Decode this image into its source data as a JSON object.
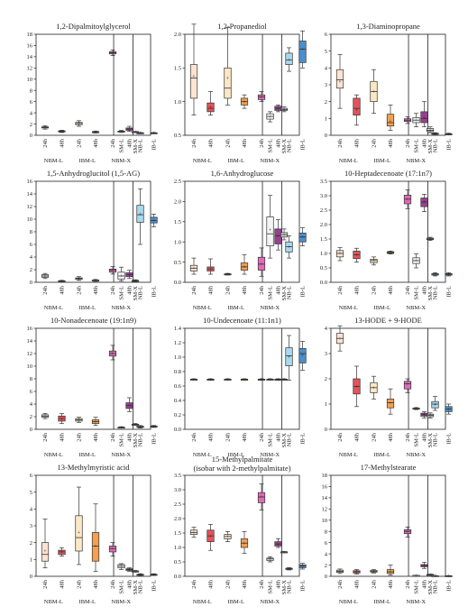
{
  "groups": [
    "NBM-L",
    "IBM-L",
    "NBM-X"
  ],
  "time_labels": [
    "24h",
    "48h"
  ],
  "single_labels": [
    "SM-L",
    "SM-X",
    "NB-L",
    "IB-L"
  ],
  "box_colors": [
    "#fde3d3",
    "#e8525a",
    "#fde8c6",
    "#f2a053",
    "#e06cb6",
    "#9b3f93",
    "#f4f4f4",
    "#dcdcdc",
    "#a9d8ef",
    "#4a8fce"
  ],
  "chart_data": [
    {
      "type": "box",
      "title": "1,2-Dipalmitoylglycerol",
      "ylim": [
        0,
        18
      ],
      "yticks": [
        0,
        2,
        4,
        6,
        8,
        10,
        12,
        14,
        16,
        18
      ],
      "categories": [
        "NBM-L 24h",
        "NBM-L 48h",
        "IBM-L 24h",
        "IBM-L 48h",
        "NBM-X 24h",
        "NBM-X 48h",
        "SM-L",
        "SM-X",
        "NB-L",
        "IB-L"
      ],
      "boxes": [
        [
          1.1,
          1.3,
          1.4,
          1.5,
          1.7,
          1.45
        ],
        [
          0.5,
          0.6,
          0.7,
          0.8,
          0.9,
          0.7
        ],
        [
          1.6,
          1.9,
          2.1,
          2.3,
          2.6,
          2.1
        ],
        [
          0.4,
          0.5,
          0.6,
          0.65,
          0.75,
          0.6
        ],
        [
          14.2,
          14.5,
          14.7,
          14.9,
          15.2,
          14.7
        ],
        [
          0.7,
          0.9,
          1.1,
          1.3,
          1.6,
          1.1
        ],
        [
          0.5,
          0.6,
          0.7,
          0.75,
          0.85,
          0.7
        ],
        [
          0.5,
          0.55,
          0.6,
          0.65,
          0.7,
          0.6
        ],
        [
          0.3,
          0.35,
          0.4,
          0.45,
          0.5,
          0.4
        ],
        [
          0.3,
          0.35,
          0.4,
          0.45,
          0.5,
          0.4
        ]
      ]
    },
    {
      "type": "box",
      "title": "1,2-Propanediol",
      "ylim": [
        0.5,
        2.0
      ],
      "yticks": [
        0.5,
        1.0,
        1.5,
        2.0
      ],
      "categories": [
        "NBM-L 24h",
        "NBM-L 48h",
        "IBM-L 24h",
        "IBM-L 48h",
        "NBM-X 24h",
        "NBM-X 48h",
        "SM-L",
        "SM-X",
        "NB-L",
        "IB-L"
      ],
      "boxes": [
        [
          0.8,
          1.05,
          1.35,
          1.55,
          2.15,
          1.38
        ],
        [
          0.8,
          0.85,
          0.9,
          0.98,
          1.15,
          0.92
        ],
        [
          0.95,
          1.05,
          1.2,
          1.5,
          2.1,
          1.35
        ],
        [
          0.9,
          0.95,
          1.0,
          1.05,
          1.1,
          1.0
        ],
        [
          1.0,
          1.03,
          1.07,
          1.1,
          1.15,
          1.07
        ],
        [
          0.85,
          0.87,
          0.9,
          0.93,
          0.95,
          0.9
        ],
        [
          0.7,
          0.74,
          0.78,
          0.82,
          0.85,
          0.78
        ],
        [
          0.85,
          0.87,
          0.88,
          0.9,
          0.92,
          0.88
        ],
        [
          1.45,
          1.55,
          1.62,
          1.72,
          1.8,
          1.62
        ],
        [
          1.5,
          1.58,
          1.78,
          1.9,
          2.05,
          1.78
        ]
      ]
    },
    {
      "type": "box",
      "title": "1,3-Diaminopropane",
      "ylim": [
        0,
        6
      ],
      "yticks": [
        0,
        1,
        2,
        3,
        4,
        5,
        6
      ],
      "categories": [
        "NBM-L 24h",
        "NBM-L 48h",
        "IBM-L 24h",
        "IBM-L 48h",
        "NBM-X 24h",
        "NBM-X 48h",
        "SM-L",
        "SM-X",
        "NB-L",
        "IB-L"
      ],
      "boxes": [
        [
          1.6,
          2.8,
          3.3,
          3.9,
          4.8,
          3.2
        ],
        [
          0.6,
          1.2,
          1.6,
          2.2,
          2.4,
          1.5
        ],
        [
          1.3,
          2.0,
          2.6,
          3.2,
          3.9,
          2.6
        ],
        [
          0.3,
          0.55,
          0.75,
          1.25,
          1.8,
          0.85
        ],
        [
          0.7,
          0.82,
          0.9,
          0.98,
          1.1,
          0.9
        ],
        [
          0.5,
          0.75,
          1.0,
          1.4,
          2.0,
          1.05
        ],
        [
          0.5,
          0.75,
          0.9,
          1.05,
          1.3,
          0.9
        ],
        [
          0.15,
          0.22,
          0.3,
          0.4,
          0.5,
          0.3
        ],
        [
          0.05,
          0.08,
          0.1,
          0.12,
          0.15,
          0.1
        ],
        [
          0.03,
          0.05,
          0.07,
          0.09,
          0.12,
          0.07
        ]
      ]
    },
    {
      "type": "box",
      "title": "1,5-Anhydroglucitol (1,5-AG)",
      "ylim": [
        0,
        16
      ],
      "yticks": [
        0,
        2,
        4,
        6,
        8,
        10,
        12,
        14,
        16
      ],
      "categories": [
        "NBM-L 24h",
        "NBM-L 48h",
        "IBM-L 24h",
        "IBM-L 48h",
        "NBM-X 24h",
        "NBM-X 48h",
        "SM-L",
        "SM-X",
        "NB-L",
        "IB-L"
      ],
      "boxes": [
        [
          0.6,
          0.8,
          1.0,
          1.2,
          1.4,
          1.0
        ],
        [
          0.1,
          0.15,
          0.2,
          0.25,
          0.3,
          0.2
        ],
        [
          0.3,
          0.45,
          0.6,
          0.7,
          0.9,
          0.6
        ],
        [
          0.15,
          0.2,
          0.3,
          0.35,
          0.45,
          0.3
        ],
        [
          1.3,
          1.6,
          1.9,
          2.1,
          2.5,
          1.9
        ],
        [
          0.6,
          0.9,
          1.2,
          1.5,
          1.9,
          1.2
        ],
        [
          0.2,
          0.5,
          1.0,
          1.6,
          2.4,
          1.0
        ],
        [
          0.1,
          0.15,
          0.2,
          0.3,
          0.4,
          0.2
        ],
        [
          6.0,
          9.5,
          10.7,
          12.2,
          14.8,
          10.8
        ],
        [
          8.8,
          9.4,
          9.8,
          10.3,
          10.8,
          9.8
        ]
      ]
    },
    {
      "type": "box",
      "title": "1,6-Anhydroglucose",
      "ylim": [
        0,
        2.5
      ],
      "yticks": [
        0,
        0.5,
        1.0,
        1.5,
        2.0,
        2.5
      ],
      "categories": [
        "NBM-L 24h",
        "NBM-L 48h",
        "IBM-L 24h",
        "IBM-L 48h",
        "NBM-X 24h",
        "NBM-X 48h",
        "SM-L",
        "SM-X",
        "NB-L",
        "IB-L"
      ],
      "boxes": [
        [
          0.2,
          0.28,
          0.35,
          0.42,
          0.6,
          0.35
        ],
        [
          0.2,
          0.28,
          0.33,
          0.38,
          0.58,
          0.33
        ],
        [
          0.18,
          0.19,
          0.2,
          0.21,
          0.22,
          0.2
        ],
        [
          0.2,
          0.3,
          0.38,
          0.48,
          0.68,
          0.4
        ],
        [
          0.15,
          0.3,
          0.45,
          0.62,
          0.85,
          0.45
        ],
        [
          0.8,
          0.95,
          1.15,
          1.32,
          1.55,
          1.15
        ],
        [
          0.6,
          0.9,
          1.2,
          1.62,
          2.15,
          1.3
        ],
        [
          1.05,
          1.12,
          1.18,
          1.23,
          1.32,
          1.18
        ],
        [
          0.6,
          0.75,
          0.88,
          1.0,
          1.15,
          0.88
        ],
        [
          0.9,
          1.0,
          1.12,
          1.22,
          1.35,
          1.12
        ]
      ]
    },
    {
      "type": "box",
      "title": "10-Heptadecenoate (17:1n7)",
      "ylim": [
        0,
        3.5
      ],
      "yticks": [
        0,
        0.5,
        1.0,
        1.5,
        2.0,
        2.5,
        3.0,
        3.5
      ],
      "categories": [
        "NBM-L 24h",
        "NBM-L 48h",
        "IBM-L 24h",
        "IBM-L 48h",
        "NBM-X 24h",
        "NBM-X 48h",
        "SM-L",
        "SM-X",
        "NB-L",
        "IB-L"
      ],
      "boxes": [
        [
          0.75,
          0.88,
          1.0,
          1.1,
          1.2,
          1.0
        ],
        [
          0.7,
          0.82,
          0.95,
          1.08,
          1.18,
          0.95
        ],
        [
          0.6,
          0.68,
          0.75,
          0.8,
          0.88,
          0.75
        ],
        [
          0.98,
          1.0,
          1.03,
          1.06,
          1.08,
          1.03
        ],
        [
          2.55,
          2.72,
          2.88,
          3.02,
          3.2,
          2.88
        ],
        [
          2.45,
          2.62,
          2.78,
          2.92,
          3.05,
          2.78
        ],
        [
          0.5,
          0.65,
          0.75,
          0.85,
          0.98,
          0.75
        ],
        [
          1.45,
          1.48,
          1.5,
          1.53,
          1.56,
          1.5
        ],
        [
          0.22,
          0.25,
          0.28,
          0.3,
          0.33,
          0.28
        ],
        [
          0.22,
          0.25,
          0.28,
          0.3,
          0.33,
          0.28
        ]
      ]
    },
    {
      "type": "box",
      "title": "10-Nonadecenoate (19:1n9)",
      "ylim": [
        0,
        16
      ],
      "yticks": [
        0,
        2,
        4,
        6,
        8,
        10,
        12,
        14,
        16
      ],
      "categories": [
        "NBM-L 24h",
        "NBM-L 48h",
        "IBM-L 24h",
        "IBM-L 48h",
        "NBM-X 24h",
        "NBM-X 48h",
        "SM-L",
        "SM-X",
        "NB-L",
        "IB-L"
      ],
      "boxes": [
        [
          1.7,
          1.9,
          2.1,
          2.3,
          2.5,
          2.1
        ],
        [
          0.9,
          1.3,
          1.7,
          2.1,
          2.5,
          1.7
        ],
        [
          1.1,
          1.3,
          1.5,
          1.7,
          1.9,
          1.5
        ],
        [
          0.6,
          0.9,
          1.2,
          1.5,
          1.9,
          1.2
        ],
        [
          11.0,
          11.6,
          12.0,
          12.4,
          13.3,
          12.0
        ],
        [
          2.8,
          3.3,
          3.8,
          4.2,
          5.0,
          3.8
        ],
        [
          0.2,
          0.25,
          0.3,
          0.35,
          0.4,
          0.3
        ],
        [
          0.6,
          0.7,
          0.75,
          0.8,
          0.9,
          0.75
        ],
        [
          0.2,
          0.3,
          0.4,
          0.5,
          0.6,
          0.4
        ],
        [
          0.3,
          0.38,
          0.45,
          0.52,
          0.6,
          0.45
        ]
      ]
    },
    {
      "type": "box",
      "title": "10-Undecenoate (11:1n1)",
      "ylim": [
        0,
        1.4
      ],
      "yticks": [
        0,
        0.2,
        0.4,
        0.6,
        0.8,
        1.0,
        1.2,
        1.4
      ],
      "categories": [
        "NBM-L 24h",
        "NBM-L 48h",
        "IBM-L 24h",
        "IBM-L 48h",
        "NBM-X 24h",
        "NBM-X 48h",
        "SM-L",
        "SM-X",
        "NB-L",
        "IB-L"
      ],
      "boxes": [
        [
          0.68,
          0.685,
          0.69,
          0.695,
          0.7,
          0.69
        ],
        [
          0.68,
          0.685,
          0.69,
          0.695,
          0.7,
          0.69
        ],
        [
          0.68,
          0.685,
          0.69,
          0.695,
          0.7,
          0.69
        ],
        [
          0.68,
          0.685,
          0.69,
          0.695,
          0.7,
          0.69
        ],
        [
          0.68,
          0.685,
          0.69,
          0.695,
          0.7,
          0.69
        ],
        [
          0.68,
          0.685,
          0.69,
          0.695,
          0.7,
          0.69
        ],
        [
          0.68,
          0.685,
          0.69,
          0.695,
          0.7,
          0.69
        ],
        [
          0.68,
          0.685,
          0.69,
          0.695,
          0.7,
          0.69
        ],
        [
          0.68,
          0.88,
          1.02,
          1.13,
          1.3,
          1.0
        ],
        [
          0.82,
          0.92,
          1.05,
          1.12,
          1.22,
          1.03
        ]
      ]
    },
    {
      "type": "box",
      "title": "13-HODE + 9-HODE",
      "ylim": [
        0,
        4
      ],
      "yticks": [
        0,
        1,
        2,
        3,
        4
      ],
      "categories": [
        "NBM-L 24h",
        "NBM-L 48h",
        "IBM-L 24h",
        "IBM-L 48h",
        "NBM-X 24h",
        "NBM-X 48h",
        "SM-L",
        "SM-X",
        "NB-L",
        "IB-L"
      ],
      "boxes": [
        [
          3.1,
          3.4,
          3.6,
          3.8,
          4.1,
          3.6
        ],
        [
          0.9,
          1.4,
          1.7,
          2.0,
          2.5,
          1.7
        ],
        [
          1.2,
          1.45,
          1.65,
          1.85,
          2.1,
          1.65
        ],
        [
          0.6,
          0.85,
          1.05,
          1.2,
          1.6,
          1.05
        ],
        [
          1.45,
          1.6,
          1.8,
          1.9,
          2.0,
          1.8
        ],
        [
          0.45,
          0.52,
          0.58,
          0.64,
          0.7,
          0.58
        ],
        [
          0.78,
          0.8,
          0.82,
          0.84,
          0.86,
          0.82
        ],
        [
          0.45,
          0.5,
          0.55,
          0.6,
          0.65,
          0.55
        ],
        [
          0.75,
          0.85,
          1.0,
          1.1,
          1.3,
          0.98
        ],
        [
          0.6,
          0.7,
          0.8,
          0.9,
          1.0,
          0.8
        ]
      ]
    },
    {
      "type": "box",
      "title": "13-Methylmyristic acid",
      "ylim": [
        0,
        6
      ],
      "yticks": [
        0,
        1,
        2,
        3,
        4,
        5,
        6
      ],
      "categories": [
        "NBM-L 24h",
        "NBM-L 48h",
        "IBM-L 24h",
        "IBM-L 48h",
        "NBM-X 24h",
        "NBM-X 48h",
        "SM-L",
        "SM-X",
        "NB-L",
        "IB-L"
      ],
      "boxes": [
        [
          0.5,
          0.9,
          1.3,
          2.0,
          3.4,
          1.5
        ],
        [
          1.2,
          1.3,
          1.45,
          1.55,
          1.7,
          1.45
        ],
        [
          0.7,
          1.5,
          2.3,
          3.6,
          5.3,
          2.6
        ],
        [
          0.3,
          0.9,
          1.8,
          2.6,
          4.3,
          1.8
        ],
        [
          1.2,
          1.45,
          1.65,
          1.8,
          2.0,
          1.65
        ],
        [
          0.3,
          0.35,
          0.4,
          0.45,
          0.5,
          0.4
        ],
        [
          0.4,
          0.5,
          0.6,
          0.7,
          0.75,
          0.6
        ],
        [
          0.25,
          0.28,
          0.3,
          0.32,
          0.35,
          0.3
        ],
        [
          0.05,
          0.08,
          0.1,
          0.12,
          0.15,
          0.1
        ],
        [
          0.05,
          0.08,
          0.1,
          0.12,
          0.15,
          0.1
        ]
      ]
    },
    {
      "type": "box",
      "title": "15-Methylpalmitate",
      "subtitle": "(isobar with 2-methylpalmitate)",
      "ylim": [
        0,
        3.5
      ],
      "yticks": [
        0,
        0.5,
        1.0,
        1.5,
        2.0,
        2.5,
        3.0,
        3.5
      ],
      "categories": [
        "NBM-L 24h",
        "NBM-L 48h",
        "IBM-L 24h",
        "IBM-L 48h",
        "NBM-X 24h",
        "NBM-X 48h",
        "SM-L",
        "SM-X",
        "NB-L",
        "IB-L"
      ],
      "boxes": [
        [
          1.35,
          1.45,
          1.52,
          1.6,
          1.7,
          1.52
        ],
        [
          0.9,
          1.2,
          1.4,
          1.6,
          1.8,
          1.4
        ],
        [
          1.2,
          1.3,
          1.38,
          1.45,
          1.55,
          1.38
        ],
        [
          0.8,
          1.0,
          1.15,
          1.3,
          1.55,
          1.15
        ],
        [
          2.3,
          2.55,
          2.75,
          2.9,
          3.2,
          2.75
        ],
        [
          1.0,
          1.05,
          1.12,
          1.2,
          1.3,
          1.12
        ],
        [
          0.5,
          0.55,
          0.6,
          0.63,
          0.68,
          0.6
        ],
        [
          0.82,
          0.83,
          0.84,
          0.85,
          0.86,
          0.84
        ],
        [
          0.22,
          0.24,
          0.26,
          0.28,
          0.3,
          0.26
        ],
        [
          0.25,
          0.3,
          0.35,
          0.4,
          0.45,
          0.35
        ]
      ]
    },
    {
      "type": "box",
      "title": "17-Methylstearate",
      "ylim": [
        0,
        18
      ],
      "yticks": [
        0,
        2,
        4,
        6,
        8,
        10,
        12,
        14,
        16,
        18
      ],
      "categories": [
        "NBM-L 24h",
        "NBM-L 48h",
        "IBM-L 24h",
        "IBM-L 48h",
        "NBM-X 24h",
        "NBM-X 48h",
        "SM-L",
        "SM-X",
        "NB-L",
        "IB-L"
      ],
      "boxes": [
        [
          0.5,
          0.7,
          0.9,
          1.1,
          1.3,
          0.9
        ],
        [
          0.4,
          0.6,
          0.8,
          1.0,
          1.2,
          0.8
        ],
        [
          0.6,
          0.75,
          0.9,
          1.05,
          1.2,
          0.9
        ],
        [
          0.2,
          0.5,
          0.8,
          1.2,
          2.0,
          0.8
        ],
        [
          7.0,
          7.6,
          8.0,
          8.3,
          8.8,
          8.0
        ],
        [
          1.4,
          1.7,
          1.9,
          2.1,
          2.5,
          1.9
        ],
        [
          0.1,
          0.13,
          0.15,
          0.17,
          0.2,
          0.15
        ],
        [
          0.2,
          0.25,
          0.3,
          0.35,
          0.4,
          0.3
        ],
        [
          0.05,
          0.08,
          0.1,
          0.12,
          0.15,
          0.1
        ],
        [
          0.05,
          0.07,
          0.09,
          0.11,
          0.13,
          0.09
        ]
      ]
    }
  ]
}
